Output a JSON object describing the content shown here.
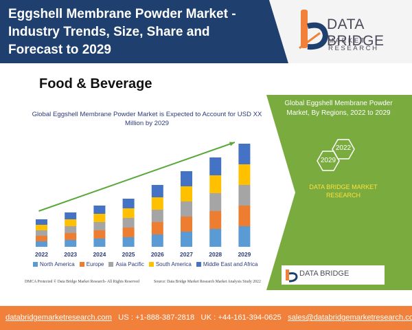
{
  "header": {
    "title": "Eggshell Membrane Powder Market - Industry Trends, Size, Share and Forecast to 2029",
    "logo_name": "DATA BRIDGE",
    "logo_tagline": "MARKET RESEARCH"
  },
  "category": "Food & Beverage",
  "chart_data": {
    "type": "bar",
    "stacked": true,
    "title": "Global Eggshell Membrane Powder Market is Expected to Account for USD XX Million by 2029",
    "xlabel": "",
    "ylabel": "",
    "categories": [
      "2022",
      "2023",
      "2024",
      "2025",
      "2026",
      "2027",
      "2028",
      "2029"
    ],
    "series": [
      {
        "name": "North America",
        "color": "#5b9bd5",
        "values": [
          4,
          5,
          6,
          7,
          9,
          11,
          13,
          15
        ]
      },
      {
        "name": "Europe",
        "color": "#ed7d31",
        "values": [
          4,
          5,
          6,
          7,
          9,
          11,
          13,
          15
        ]
      },
      {
        "name": "Asia Pacific",
        "color": "#a5a5a5",
        "values": [
          4,
          5,
          6,
          7,
          9,
          11,
          13,
          15
        ]
      },
      {
        "name": "South America",
        "color": "#ffc000",
        "values": [
          4,
          5,
          6,
          7,
          9,
          11,
          13,
          15
        ]
      },
      {
        "name": "Middle East and Africa",
        "color": "#4472c4",
        "values": [
          4,
          5,
          6,
          7,
          9,
          11,
          13,
          15
        ]
      }
    ],
    "ylim": [
      0,
      75
    ],
    "grid": false,
    "legend_position": "bottom",
    "trend_arrow_color": "#5aa83a"
  },
  "footnotes": {
    "left": "DMCA Protected © Data Bridge Market Research- All Rights Reserved",
    "right": "Source: Data Bridge Market Research Market Analysis Study 2022"
  },
  "panel": {
    "title": "Global Eggshell Membrane Powder Market, By Regions, 2022 to 2029",
    "hex_start": "2029",
    "hex_end": "2022",
    "brand": "DATA BRIDGE MARKET RESEARCH",
    "logo_name": "DATA BRIDGE",
    "colors": {
      "green": "#7aab3f",
      "brand_text": "#ffe23b"
    }
  },
  "footer": {
    "website": "databridgemarketresearch.com",
    "us_phone": "US : +1-888-387-2818",
    "uk_phone": "UK : +44-161-394-0625",
    "email": "sales@databridgemarketresearch.com",
    "color": "#f0803a"
  },
  "colors": {
    "header_blue": "#1f3f6e",
    "accent_orange": "#f0803a"
  }
}
